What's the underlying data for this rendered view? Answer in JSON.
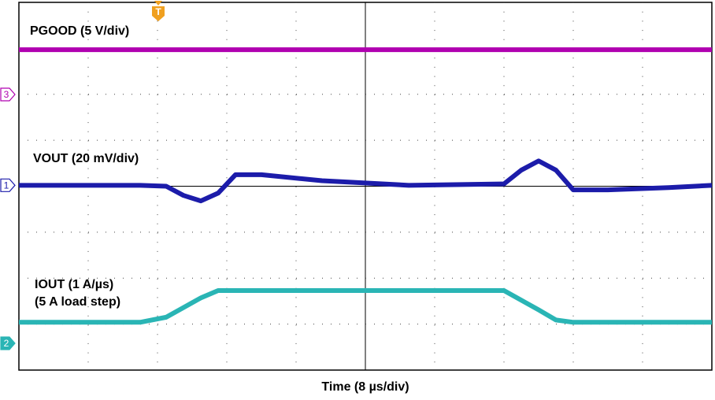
{
  "chart_data": {
    "type": "line",
    "x_label": "Time (8 µs/div)",
    "xlim": [
      0,
      80
    ],
    "ylim": [
      0,
      8
    ],
    "x": [
      0,
      14,
      17,
      19,
      21,
      23,
      25,
      28,
      35,
      45,
      56,
      58,
      60,
      62,
      64,
      68,
      75,
      80
    ],
    "series": [
      {
        "name": "PGOOD (5 V/div)",
        "color": "#b000b0",
        "channel": "3",
        "values": [
          6.97,
          6.97,
          6.97,
          6.97,
          6.97,
          6.97,
          6.97,
          6.97,
          6.97,
          6.97,
          6.97,
          6.97,
          6.97,
          6.97,
          6.97,
          6.97,
          6.97,
          6.97
        ]
      },
      {
        "name": "VOUT (20 mV/div)",
        "color": "#1c1caa",
        "channel": "1",
        "values": [
          4.02,
          4.02,
          4.0,
          3.8,
          3.68,
          3.85,
          4.25,
          4.25,
          4.12,
          4.02,
          4.05,
          4.35,
          4.55,
          4.35,
          3.92,
          3.92,
          3.97,
          4.02
        ]
      },
      {
        "name": "IOUT (1 A/µs)",
        "subtitle": "(5 A load step)",
        "color": "#2ab5b5",
        "channel": "2",
        "values": [
          1.04,
          1.04,
          1.15,
          1.36,
          1.57,
          1.73,
          1.73,
          1.73,
          1.73,
          1.73,
          1.73,
          1.52,
          1.31,
          1.09,
          1.04,
          1.04,
          1.04,
          1.04
        ]
      }
    ],
    "trigger": "T"
  }
}
